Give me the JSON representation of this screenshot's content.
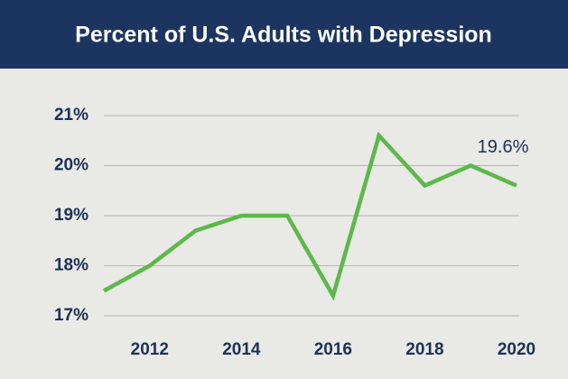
{
  "chart_data": {
    "type": "line",
    "title": "Percent of U.S. Adults with Depression",
    "x": [
      2011,
      2012,
      2013,
      2014,
      2015,
      2016,
      2017,
      2018,
      2019,
      2020
    ],
    "series": [
      {
        "name": "Adults with depression",
        "color": "#5cb84a",
        "values": [
          17.5,
          18.0,
          18.7,
          19.0,
          19.0,
          17.4,
          20.6,
          19.6,
          20.0,
          19.6
        ]
      }
    ],
    "annotation": "19.6%",
    "xlim": [
      2011,
      2020
    ],
    "xticks": [
      2012,
      2014,
      2016,
      2018,
      2020
    ],
    "ylim": [
      17,
      21
    ],
    "yticks": [
      {
        "value": 17,
        "label": "17%"
      },
      {
        "value": 18,
        "label": "18%"
      },
      {
        "value": 19,
        "label": "19%"
      },
      {
        "value": 20,
        "label": "20%"
      },
      {
        "value": 21,
        "label": "21%"
      }
    ],
    "grid": true
  }
}
